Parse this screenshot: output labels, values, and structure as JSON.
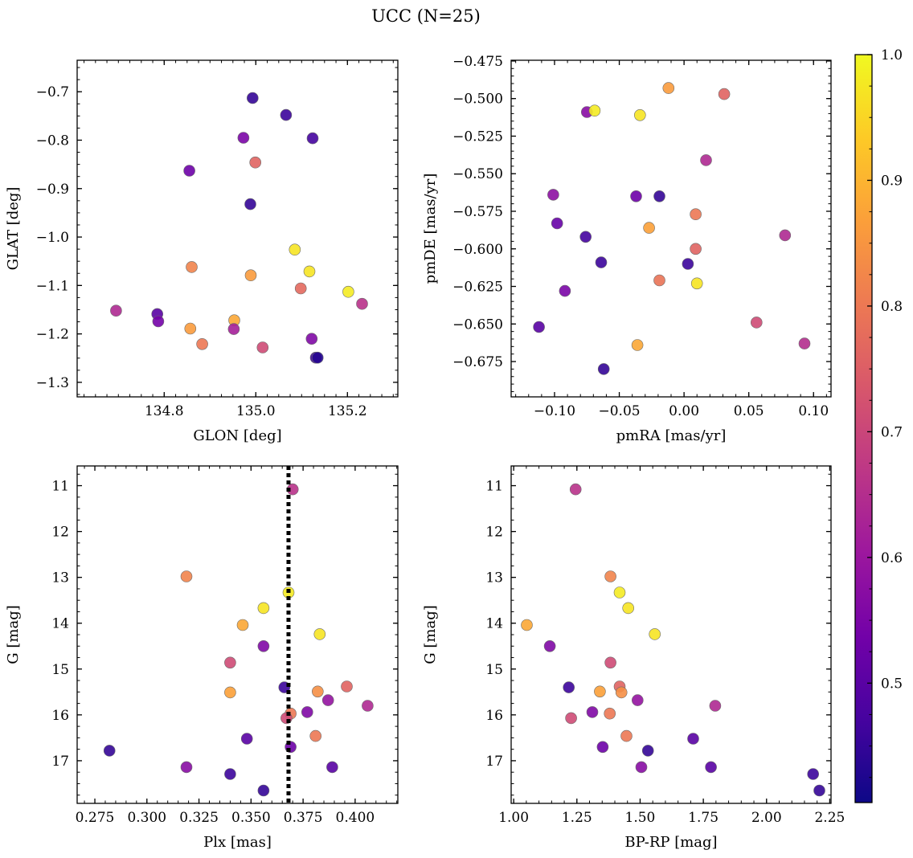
{
  "title": "UCC (N=25)",
  "colormap": {
    "name": "plasma",
    "range": [
      0.405,
      1.0
    ],
    "ticks": [
      "0.5",
      "0.6",
      "0.7",
      "0.8",
      "0.9",
      "1.0"
    ],
    "tick_values": [
      0.5,
      0.6,
      0.7,
      0.8,
      0.9,
      1.0
    ],
    "stops": [
      "#0d0887",
      "#46039f",
      "#7201a8",
      "#9c179e",
      "#bd3786",
      "#d8576b",
      "#ed7953",
      "#fb9f3a",
      "#fdca26",
      "#f0f921"
    ]
  },
  "chart_data": [
    {
      "type": "scatter",
      "id": "glon-glat",
      "xlabel": "GLON [deg]",
      "ylabel": "GLAT [deg]",
      "xlim": [
        134.61,
        135.31
      ],
      "ylim": [
        -1.33,
        -0.635
      ],
      "invert_y": false,
      "xticks": [
        134.8,
        135.0,
        135.2
      ],
      "xticklabels": [
        "134.8",
        "135.0",
        "135.2"
      ],
      "yticks": [
        -0.7,
        -0.8,
        -0.9,
        -1.0,
        -1.1,
        -1.2,
        -1.3
      ],
      "yticklabels": [
        "−0.7",
        "−0.8",
        "−0.9",
        "−1.0",
        "−1.1",
        "−1.2",
        "−1.3"
      ],
      "xminor": 0.025,
      "yminor": 0.025,
      "points": [
        {
          "x": 134.993,
          "y": -0.713,
          "c": 0.45
        },
        {
          "x": 135.066,
          "y": -0.748,
          "c": 0.46
        },
        {
          "x": 134.973,
          "y": -0.795,
          "c": 0.55
        },
        {
          "x": 135.124,
          "y": -0.796,
          "c": 0.47
        },
        {
          "x": 134.999,
          "y": -0.846,
          "c": 0.76
        },
        {
          "x": 134.855,
          "y": -0.863,
          "c": 0.53
        },
        {
          "x": 134.988,
          "y": -0.932,
          "c": 0.45
        },
        {
          "x": 135.085,
          "y": -1.026,
          "c": 0.97
        },
        {
          "x": 134.86,
          "y": -1.062,
          "c": 0.82
        },
        {
          "x": 135.117,
          "y": -1.071,
          "c": 0.97
        },
        {
          "x": 134.989,
          "y": -1.079,
          "c": 0.86
        },
        {
          "x": 135.098,
          "y": -1.106,
          "c": 0.77
        },
        {
          "x": 135.202,
          "y": -1.113,
          "c": 0.98
        },
        {
          "x": 135.232,
          "y": -1.138,
          "c": 0.66
        },
        {
          "x": 134.695,
          "y": -1.152,
          "c": 0.64
        },
        {
          "x": 134.785,
          "y": -1.159,
          "c": 0.5
        },
        {
          "x": 134.787,
          "y": -1.174,
          "c": 0.54
        },
        {
          "x": 134.953,
          "y": -1.172,
          "c": 0.88
        },
        {
          "x": 134.857,
          "y": -1.189,
          "c": 0.86
        },
        {
          "x": 134.952,
          "y": -1.19,
          "c": 0.62
        },
        {
          "x": 134.883,
          "y": -1.221,
          "c": 0.8
        },
        {
          "x": 135.015,
          "y": -1.228,
          "c": 0.71
        },
        {
          "x": 135.122,
          "y": -1.21,
          "c": 0.56
        },
        {
          "x": 135.131,
          "y": -1.249,
          "c": 0.46
        },
        {
          "x": 135.135,
          "y": -1.249,
          "c": 0.43
        }
      ]
    },
    {
      "type": "scatter",
      "id": "pmra-pmde",
      "xlabel": "pmRA [mas/yr]",
      "ylabel": "pmDE [mas/yr]",
      "xlim": [
        -0.1335,
        0.1135
      ],
      "ylim": [
        -0.6985,
        -0.4745
      ],
      "invert_y": false,
      "xticks": [
        -0.1,
        -0.05,
        0.0,
        0.05,
        0.1
      ],
      "xticklabels": [
        "−0.10",
        "−0.05",
        "0.00",
        "0.05",
        "0.10"
      ],
      "yticks": [
        -0.475,
        -0.5,
        -0.525,
        -0.55,
        -0.575,
        -0.6,
        -0.625,
        -0.65,
        -0.675
      ],
      "yticklabels": [
        "−0.475",
        "−0.500",
        "−0.525",
        "−0.550",
        "−0.575",
        "−0.600",
        "−0.625",
        "−0.650",
        "−0.675"
      ],
      "xminor": 0.01,
      "yminor": 0.005,
      "points": [
        {
          "x": -0.012,
          "y": -0.493,
          "c": 0.86
        },
        {
          "x": 0.031,
          "y": -0.497,
          "c": 0.76
        },
        {
          "x": -0.075,
          "y": -0.509,
          "c": 0.57
        },
        {
          "x": -0.069,
          "y": -0.508,
          "c": 0.98
        },
        {
          "x": -0.034,
          "y": -0.511,
          "c": 0.97
        },
        {
          "x": 0.017,
          "y": -0.541,
          "c": 0.64
        },
        {
          "x": -0.101,
          "y": -0.564,
          "c": 0.58
        },
        {
          "x": -0.037,
          "y": -0.565,
          "c": 0.53
        },
        {
          "x": -0.019,
          "y": -0.565,
          "c": 0.45
        },
        {
          "x": 0.009,
          "y": -0.577,
          "c": 0.8
        },
        {
          "x": -0.098,
          "y": -0.583,
          "c": 0.52
        },
        {
          "x": -0.027,
          "y": -0.586,
          "c": 0.87
        },
        {
          "x": -0.076,
          "y": -0.592,
          "c": 0.47
        },
        {
          "x": 0.078,
          "y": -0.591,
          "c": 0.64
        },
        {
          "x": 0.009,
          "y": -0.6,
          "c": 0.76
        },
        {
          "x": -0.064,
          "y": -0.609,
          "c": 0.46
        },
        {
          "x": 0.003,
          "y": -0.61,
          "c": 0.46
        },
        {
          "x": -0.019,
          "y": -0.621,
          "c": 0.79
        },
        {
          "x": 0.01,
          "y": -0.623,
          "c": 0.97
        },
        {
          "x": -0.092,
          "y": -0.628,
          "c": 0.55
        },
        {
          "x": -0.112,
          "y": -0.652,
          "c": 0.5
        },
        {
          "x": 0.056,
          "y": -0.649,
          "c": 0.71
        },
        {
          "x": 0.093,
          "y": -0.663,
          "c": 0.65
        },
        {
          "x": -0.036,
          "y": -0.664,
          "c": 0.88
        },
        {
          "x": -0.062,
          "y": -0.68,
          "c": 0.45
        }
      ]
    },
    {
      "type": "scatter",
      "id": "plx-g",
      "xlabel": "Plx [mas]",
      "ylabel": "G [mag]",
      "xlim": [
        0.2665,
        0.4205
      ],
      "ylim": [
        10.57,
        17.93
      ],
      "invert_y": true,
      "xticks": [
        0.275,
        0.3,
        0.325,
        0.35,
        0.375,
        0.4
      ],
      "xticklabels": [
        "0.275",
        "0.300",
        "0.325",
        "0.350",
        "0.375",
        "0.400"
      ],
      "yticks": [
        11,
        12,
        13,
        14,
        15,
        16,
        17
      ],
      "yticklabels": [
        "11",
        "12",
        "13",
        "14",
        "15",
        "16",
        "17"
      ],
      "xminor": 0.005,
      "yminor": 0.25,
      "vline": {
        "x": 0.368,
        "style": "dotted"
      },
      "points": [
        {
          "x": 0.37,
          "y": 11.08,
          "c": 0.66
        },
        {
          "x": 0.319,
          "y": 12.98,
          "c": 0.82
        },
        {
          "x": 0.368,
          "y": 13.33,
          "c": 0.98
        },
        {
          "x": 0.356,
          "y": 13.67,
          "c": 0.97
        },
        {
          "x": 0.346,
          "y": 14.04,
          "c": 0.88
        },
        {
          "x": 0.383,
          "y": 14.24,
          "c": 0.97
        },
        {
          "x": 0.356,
          "y": 14.5,
          "c": 0.56
        },
        {
          "x": 0.34,
          "y": 14.86,
          "c": 0.71
        },
        {
          "x": 0.366,
          "y": 15.4,
          "c": 0.46
        },
        {
          "x": 0.34,
          "y": 15.51,
          "c": 0.87
        },
        {
          "x": 0.382,
          "y": 15.49,
          "c": 0.84
        },
        {
          "x": 0.396,
          "y": 15.38,
          "c": 0.76
        },
        {
          "x": 0.387,
          "y": 15.68,
          "c": 0.59
        },
        {
          "x": 0.406,
          "y": 15.8,
          "c": 0.64
        },
        {
          "x": 0.369,
          "y": 15.97,
          "c": 0.8
        },
        {
          "x": 0.377,
          "y": 15.94,
          "c": 0.56
        },
        {
          "x": 0.367,
          "y": 16.07,
          "c": 0.71
        },
        {
          "x": 0.348,
          "y": 16.52,
          "c": 0.5
        },
        {
          "x": 0.381,
          "y": 16.46,
          "c": 0.8
        },
        {
          "x": 0.369,
          "y": 16.7,
          "c": 0.53
        },
        {
          "x": 0.282,
          "y": 16.78,
          "c": 0.45
        },
        {
          "x": 0.319,
          "y": 17.14,
          "c": 0.57
        },
        {
          "x": 0.389,
          "y": 17.14,
          "c": 0.5
        },
        {
          "x": 0.34,
          "y": 17.29,
          "c": 0.46
        },
        {
          "x": 0.356,
          "y": 17.65,
          "c": 0.45
        }
      ]
    },
    {
      "type": "scatter",
      "id": "bprp-g",
      "xlabel": "BP-RP [mag]",
      "ylabel": "G [mag]",
      "xlim": [
        0.99,
        2.255
      ],
      "ylim": [
        10.57,
        17.93
      ],
      "invert_y": true,
      "xticks": [
        1.0,
        1.25,
        1.5,
        1.75,
        2.0,
        2.25
      ],
      "xticklabels": [
        "1.00",
        "1.25",
        "1.50",
        "1.75",
        "2.00",
        "2.25"
      ],
      "yticks": [
        11,
        12,
        13,
        14,
        15,
        16,
        17
      ],
      "yticklabels": [
        "11",
        "12",
        "13",
        "14",
        "15",
        "16",
        "17"
      ],
      "xminor": 0.05,
      "yminor": 0.25,
      "points": [
        {
          "x": 1.245,
          "y": 11.08,
          "c": 0.66
        },
        {
          "x": 1.383,
          "y": 12.98,
          "c": 0.82
        },
        {
          "x": 1.419,
          "y": 13.33,
          "c": 0.98
        },
        {
          "x": 1.453,
          "y": 13.67,
          "c": 0.97
        },
        {
          "x": 1.052,
          "y": 14.04,
          "c": 0.88
        },
        {
          "x": 1.558,
          "y": 14.24,
          "c": 0.97
        },
        {
          "x": 1.143,
          "y": 14.5,
          "c": 0.56
        },
        {
          "x": 1.383,
          "y": 14.86,
          "c": 0.71
        },
        {
          "x": 1.218,
          "y": 15.4,
          "c": 0.46
        },
        {
          "x": 1.341,
          "y": 15.49,
          "c": 0.87
        },
        {
          "x": 1.419,
          "y": 15.38,
          "c": 0.76
        },
        {
          "x": 1.426,
          "y": 15.51,
          "c": 0.84
        },
        {
          "x": 1.49,
          "y": 15.68,
          "c": 0.59
        },
        {
          "x": 1.797,
          "y": 15.8,
          "c": 0.64
        },
        {
          "x": 1.311,
          "y": 15.94,
          "c": 0.56
        },
        {
          "x": 1.38,
          "y": 15.97,
          "c": 0.8
        },
        {
          "x": 1.227,
          "y": 16.07,
          "c": 0.71
        },
        {
          "x": 1.446,
          "y": 16.46,
          "c": 0.8
        },
        {
          "x": 1.71,
          "y": 16.52,
          "c": 0.5
        },
        {
          "x": 1.352,
          "y": 16.7,
          "c": 0.53
        },
        {
          "x": 1.531,
          "y": 16.78,
          "c": 0.45
        },
        {
          "x": 1.505,
          "y": 17.14,
          "c": 0.57
        },
        {
          "x": 1.78,
          "y": 17.14,
          "c": 0.5
        },
        {
          "x": 2.184,
          "y": 17.29,
          "c": 0.46
        },
        {
          "x": 2.209,
          "y": 17.65,
          "c": 0.45
        }
      ]
    }
  ]
}
